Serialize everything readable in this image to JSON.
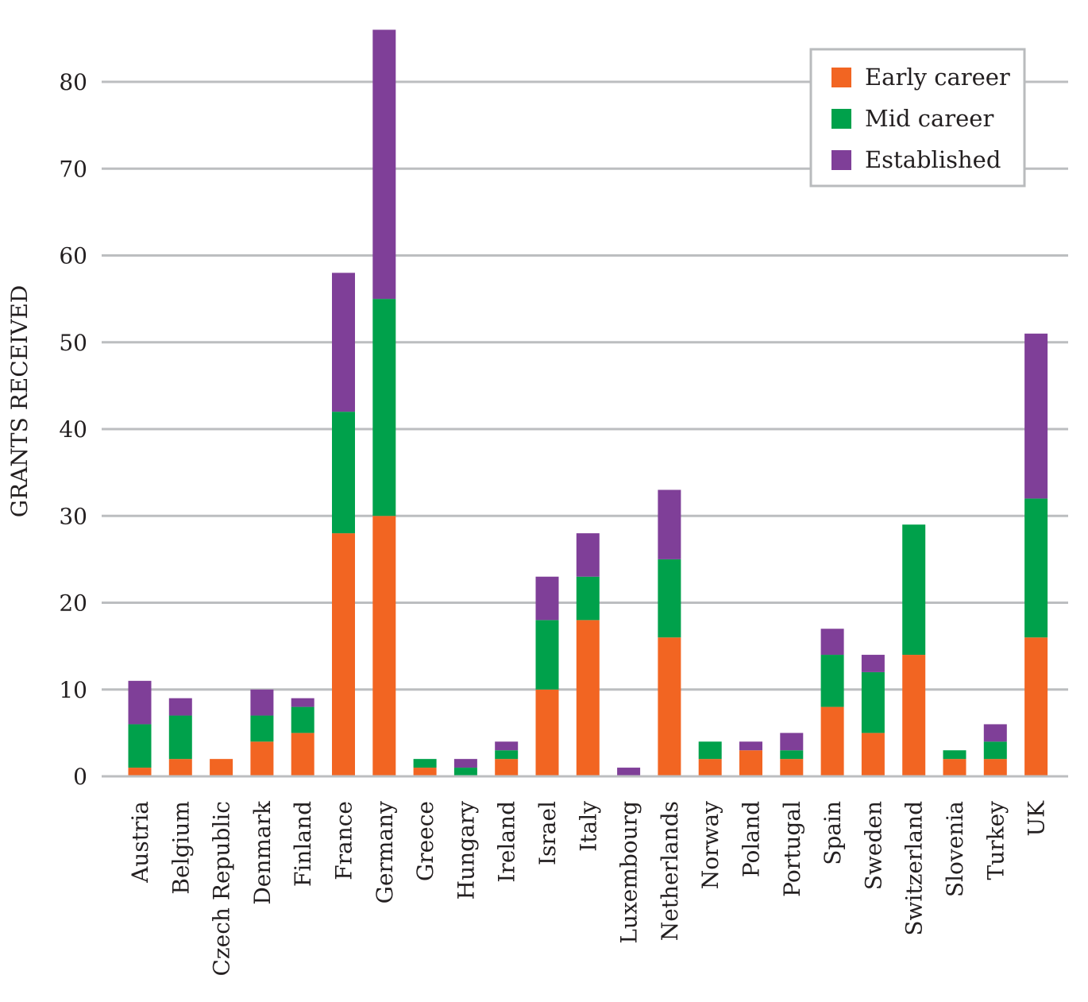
{
  "chart_data": {
    "type": "bar",
    "stacked": true,
    "title": "",
    "xlabel": "",
    "ylabel": "GRANTS RECEIVED",
    "ylim": [
      0,
      86
    ],
    "yticks": [
      0,
      10,
      20,
      30,
      40,
      50,
      60,
      70,
      80
    ],
    "grid": true,
    "legend_position": "top-right",
    "categories": [
      "Austria",
      "Belgium",
      "Czech Republic",
      "Denmark",
      "Finland",
      "France",
      "Germany",
      "Greece",
      "Hungary",
      "Ireland",
      "Israel",
      "Italy",
      "Luxembourg",
      "Netherlands",
      "Norway",
      "Poland",
      "Portugal",
      "Spain",
      "Sweden",
      "Switzerland",
      "Slovenia",
      "Turkey",
      "UK"
    ],
    "series": [
      {
        "name": "Early career",
        "color": "#f26522",
        "values": [
          1,
          2,
          2,
          4,
          5,
          28,
          30,
          1,
          0,
          2,
          10,
          18,
          0,
          16,
          2,
          3,
          2,
          8,
          5,
          14,
          2,
          2,
          16
        ]
      },
      {
        "name": "Mid career",
        "color": "#00a14b",
        "values": [
          5,
          5,
          0,
          3,
          3,
          14,
          25,
          1,
          1,
          1,
          8,
          5,
          0,
          9,
          2,
          0,
          1,
          6,
          7,
          15,
          1,
          2,
          16
        ]
      },
      {
        "name": "Established",
        "color": "#7f3f98",
        "values": [
          5,
          2,
          0,
          3,
          1,
          16,
          31,
          0,
          1,
          1,
          5,
          5,
          1,
          8,
          0,
          1,
          2,
          3,
          2,
          0,
          0,
          2,
          19
        ]
      }
    ]
  }
}
